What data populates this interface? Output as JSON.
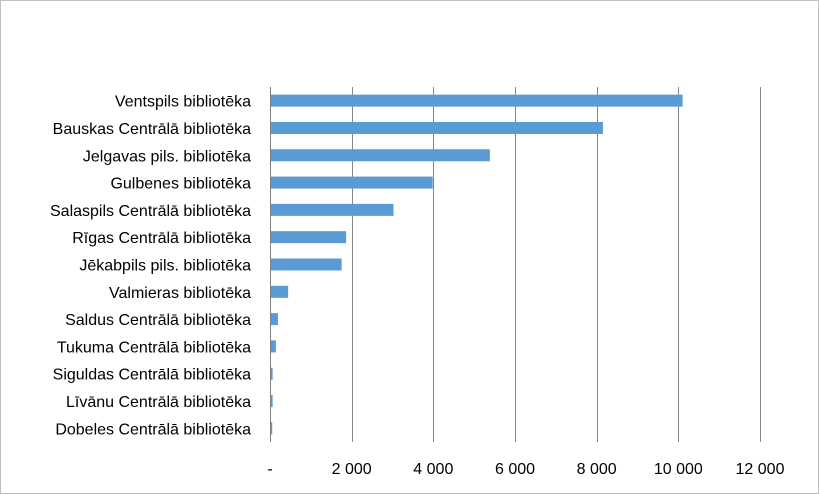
{
  "chart_data": {
    "type": "bar",
    "orientation": "horizontal",
    "title": "",
    "xlabel": "",
    "ylabel": "",
    "categories": [
      "Ventspils bibliotēka",
      "Bauskas Centrālā bibliotēka",
      "Jelgavas pils. bibliotēka",
      "Gulbenes bibliotēka",
      "Salaspils Centrālā bibliotēka",
      "Rīgas Centrālā bibliotēka",
      "Jēkabpils pils. bibliotēka",
      "Valmieras bibliotēka",
      "Saldus Centrālā bibliotēka",
      "Tukuma Centrālā bibliotēka",
      "Siguldas Centrālā bibliotēka",
      "Līvānu Centrālā bibliotēka",
      "Dobeles Centrālā bibliotēka"
    ],
    "values": [
      10080,
      8130,
      5360,
      3960,
      3000,
      1840,
      1730,
      420,
      170,
      120,
      40,
      40,
      30
    ],
    "xlim": [
      0,
      12000
    ],
    "ticks": [
      0,
      2000,
      4000,
      6000,
      8000,
      10000,
      12000
    ],
    "tick_labels": [
      "-",
      "2 000",
      "4 000",
      "6 000",
      "8 000",
      "10 000",
      "12 000"
    ],
    "grid": true,
    "legend": "none",
    "bar_color": "#5b9bd5",
    "grid_color": "#868686"
  }
}
